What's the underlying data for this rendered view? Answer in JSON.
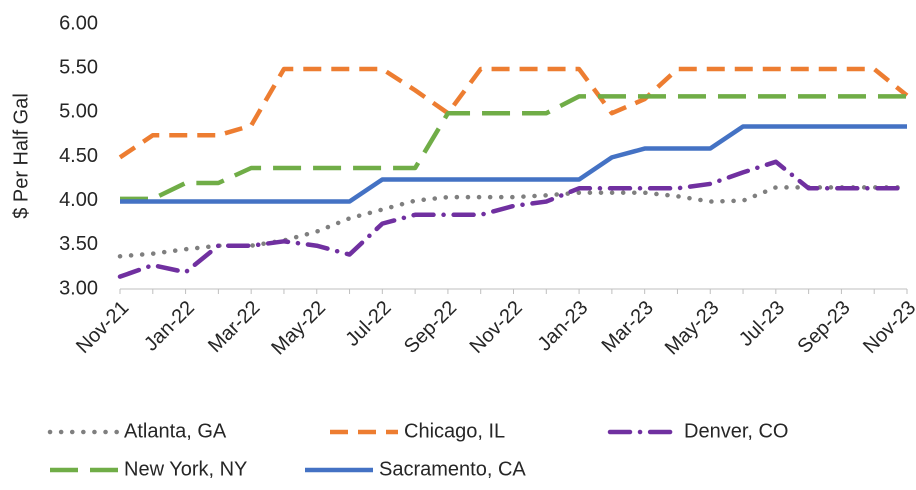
{
  "chart_data": {
    "type": "line",
    "y_label": "$ Per  Half Gal",
    "categories": [
      "Nov-21",
      null,
      "Jan-22",
      null,
      "Mar-22",
      null,
      "May-22",
      null,
      "Jul-22",
      null,
      "Sep-22",
      null,
      "Nov-22",
      null,
      "Jan-23",
      null,
      "Mar-23",
      null,
      "May-23",
      null,
      "Jul-23",
      null,
      "Sep-23",
      null,
      "Nov-23"
    ],
    "ylim": [
      3,
      6
    ],
    "yticks": [
      {
        "value": 3,
        "label": "3.00"
      },
      {
        "value": 3.5,
        "label": "3.50"
      },
      {
        "value": 4,
        "label": "4.00"
      },
      {
        "value": 4.5,
        "label": "4.50"
      },
      {
        "value": 5,
        "label": "5.00"
      },
      {
        "value": 5.5,
        "label": "5.50"
      },
      {
        "value": 6,
        "label": "6.00"
      }
    ],
    "grid": false,
    "legend": "bottom",
    "series": [
      {
        "name": "Atlanta, GA",
        "color": "#7f7f7f",
        "dash": "dot",
        "values": [
          3.37,
          3.4,
          3.45,
          3.49,
          3.49,
          3.55,
          3.65,
          3.8,
          3.9,
          4.0,
          4.04,
          4.04,
          4.04,
          4.06,
          4.09,
          4.09,
          4.09,
          4.05,
          3.99,
          4.0,
          4.15,
          4.15,
          4.15,
          4.15,
          4.15
        ]
      },
      {
        "name": "Chicago, IL",
        "color": "#ed7d31",
        "dash": "dash",
        "values": [
          4.49,
          4.74,
          4.74,
          4.74,
          4.85,
          5.49,
          5.49,
          5.49,
          5.49,
          5.25,
          4.99,
          5.49,
          5.49,
          5.49,
          5.49,
          4.99,
          5.15,
          5.49,
          5.49,
          5.49,
          5.49,
          5.49,
          5.49,
          5.49,
          5.19
        ]
      },
      {
        "name": "Denver, CO",
        "color": "#7030a0",
        "dash": "dashdot",
        "values": [
          3.14,
          3.27,
          3.19,
          3.49,
          3.49,
          3.54,
          3.49,
          3.39,
          3.74,
          3.84,
          3.84,
          3.84,
          3.94,
          3.99,
          4.14,
          4.14,
          4.14,
          4.14,
          4.19,
          4.32,
          4.44,
          4.14,
          4.14,
          4.14,
          4.14
        ]
      },
      {
        "name": "New York, NY",
        "color": "#70ad47",
        "dash": "longdash",
        "values": [
          4.02,
          4.02,
          4.2,
          4.2,
          4.37,
          4.37,
          4.37,
          4.37,
          4.37,
          4.37,
          4.99,
          4.99,
          4.99,
          4.99,
          5.18,
          5.18,
          5.18,
          5.18,
          5.18,
          5.18,
          5.18,
          5.18,
          5.18,
          5.18,
          5.18
        ]
      },
      {
        "name": "Sacramento, CA",
        "color": "#4472c4",
        "dash": "solid",
        "values": [
          3.99,
          3.99,
          3.99,
          3.99,
          3.99,
          3.99,
          3.99,
          3.99,
          4.24,
          4.24,
          4.24,
          4.24,
          4.24,
          4.24,
          4.24,
          4.49,
          4.59,
          4.59,
          4.59,
          4.84,
          4.84,
          4.84,
          4.84,
          4.84,
          4.84
        ]
      }
    ]
  }
}
